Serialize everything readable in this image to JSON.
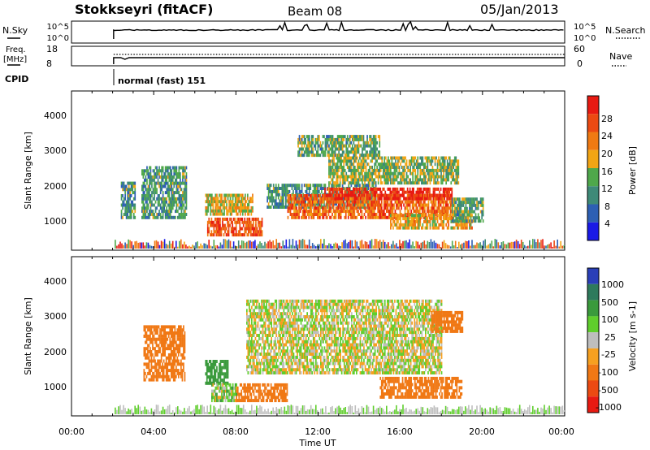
{
  "header": {
    "station": "Stokkseyri (fitACF)",
    "beam": "Beam 08",
    "date": "05/Jan/2013"
  },
  "status_panels": {
    "nsky_label": "N.Sky",
    "nsky_ticks": [
      "10^5",
      "10^0"
    ],
    "nsearch_label": "N.Search",
    "nsearch_ticks": [
      "10^5",
      "10^0"
    ],
    "freq_label_line1": "Freq.",
    "freq_label_line2": "[MHz]",
    "freq_ticks": [
      "18",
      "8"
    ],
    "nave_label": "Nave",
    "nave_ticks": [
      "60",
      "0"
    ],
    "cpid_label": "CPID",
    "cpid_value": "normal (fast) 151"
  },
  "colors": {
    "power_scale": [
      "#1a1ae6",
      "#2d5fb4",
      "#3e8a78",
      "#4fa84b",
      "#f2a514",
      "#f07a12",
      "#ec4a12",
      "#e81a12"
    ],
    "velocity_scale": [
      "#2a3fb8",
      "#2e7a5c",
      "#3a9a3c",
      "#5fce2c",
      "#bebebe",
      "#f6a020",
      "#f07814",
      "#ec4a12",
      "#e81a12"
    ],
    "gray": "#bebebe"
  },
  "chart_data": [
    {
      "type": "heatmap",
      "panel": "power",
      "ylabel": "Slant Range [km]",
      "yticks": [
        "1000",
        "2000",
        "3000",
        "4000"
      ],
      "ylim": [
        0,
        4600
      ],
      "xlim_hours": [
        0,
        24
      ],
      "colorbar_label": "Power [dB]",
      "colorbar_ticks": [
        "4",
        "8",
        "12",
        "16",
        "20",
        "24",
        "28"
      ],
      "clim": [
        0,
        32
      ],
      "regions": [
        {
          "t": [
            2.4,
            3.1
          ],
          "r": [
            900,
            1900
          ],
          "level": 0.35
        },
        {
          "t": [
            3.4,
            5.6
          ],
          "r": [
            900,
            2400
          ],
          "level": 0.35
        },
        {
          "t": [
            6.6,
            9.3
          ],
          "r": [
            400,
            900
          ],
          "level": 0.8
        },
        {
          "t": [
            6.5,
            8.8
          ],
          "r": [
            1000,
            1600
          ],
          "level": 0.55
        },
        {
          "t": [
            9.5,
            14.8
          ],
          "r": [
            1200,
            1900
          ],
          "level": 0.35
        },
        {
          "t": [
            10.5,
            18.5
          ],
          "r": [
            900,
            1600
          ],
          "level": 0.75
        },
        {
          "t": [
            12.3,
            18.5
          ],
          "r": [
            1450,
            1800
          ],
          "level": 0.92
        },
        {
          "t": [
            12.5,
            18.8
          ],
          "r": [
            1900,
            2700
          ],
          "level": 0.45
        },
        {
          "t": [
            11.0,
            15.0
          ],
          "r": [
            2700,
            3300
          ],
          "level": 0.4
        },
        {
          "t": [
            15.5,
            19.5
          ],
          "r": [
            600,
            1000
          ],
          "level": 0.6
        },
        {
          "t": [
            18.5,
            20.0
          ],
          "r": [
            800,
            1500
          ],
          "level": 0.4
        }
      ]
    },
    {
      "type": "heatmap",
      "panel": "velocity",
      "xlabel": "Time UT",
      "ylabel": "Slant Range [km]",
      "xticks": [
        "00:00",
        "04:00",
        "08:00",
        "12:00",
        "16:00",
        "20:00",
        "00:00"
      ],
      "yticks": [
        "1000",
        "2000",
        "3000",
        "4000"
      ],
      "ylim": [
        0,
        4600
      ],
      "xlim_hours": [
        0,
        24
      ],
      "colorbar_label": "Velocity [m s-1]",
      "colorbar_ticks": [
        "1000",
        "500",
        "100",
        "25",
        "-25",
        "-100",
        "-500",
        "-1000"
      ],
      "clim": [
        -1000,
        1000
      ],
      "regions": [
        {
          "t": [
            3.5,
            5.5
          ],
          "r": [
            1000,
            2600
          ],
          "vel": -300
        },
        {
          "t": [
            6.5,
            7.6
          ],
          "r": [
            900,
            1600
          ],
          "vel": 200
        },
        {
          "t": [
            6.8,
            8.0
          ],
          "r": [
            400,
            900
          ],
          "vel": 40
        },
        {
          "t": [
            8.0,
            10.5
          ],
          "r": [
            400,
            900
          ],
          "vel": -200
        },
        {
          "t": [
            8.5,
            18.0
          ],
          "r": [
            1200,
            3300
          ],
          "vel": 0
        },
        {
          "t": [
            15.0,
            19.0
          ],
          "r": [
            500,
            1100
          ],
          "vel": -300
        },
        {
          "t": [
            17.5,
            19.0
          ],
          "r": [
            2400,
            3000
          ],
          "vel": -250
        }
      ]
    }
  ]
}
